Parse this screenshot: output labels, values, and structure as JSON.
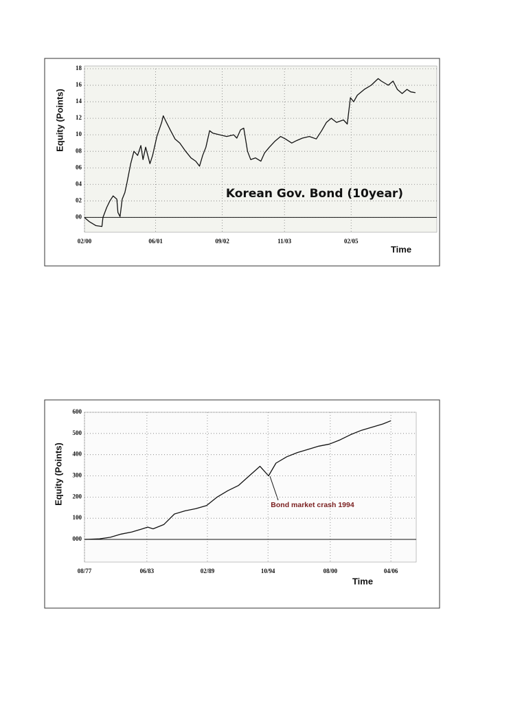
{
  "chart_data": [
    {
      "type": "line",
      "y_label": "Equity (Points)",
      "x_label": "Time",
      "annotation": "Korean Gov. Bond (10year)",
      "x": [
        2000.08,
        2000.17,
        2000.3,
        2000.41,
        2000.43,
        2000.5,
        2000.56,
        2000.62,
        2000.69,
        2000.71,
        2000.75,
        2000.79,
        2000.84,
        2000.88,
        2000.95,
        2001.01,
        2001.08,
        2001.14,
        2001.18,
        2001.23,
        2001.31,
        2001.36,
        2001.44,
        2001.53,
        2001.56,
        2001.62,
        2001.69,
        2001.78,
        2001.87,
        2001.98,
        2002.08,
        2002.17,
        2002.24,
        2002.3,
        2002.36,
        2002.43,
        2002.49,
        2002.62,
        2002.75,
        2002.88,
        2002.94,
        2003.01,
        2003.07,
        2003.14,
        2003.2,
        2003.29,
        2003.39,
        2003.46,
        2003.55,
        2003.65,
        2003.76,
        2003.85,
        2003.97,
        2004.06,
        2004.17,
        2004.3,
        2004.43,
        2004.53,
        2004.62,
        2004.71,
        2004.81,
        2004.94,
        2005.01,
        2005.07,
        2005.13,
        2005.2,
        2005.33,
        2005.46,
        2005.59,
        2005.65,
        2005.78,
        2005.87,
        2005.95,
        2006.04,
        2006.13,
        2006.2,
        2006.29
      ],
      "series": [
        {
          "color": "#111111",
          "values": [
            0,
            -0.5,
            -1.0,
            -1.1,
            0,
            1.2,
            2.0,
            2.6,
            2.2,
            0.6,
            0.1,
            2.2,
            3.0,
            4.2,
            6.5,
            8.0,
            7.5,
            8.7,
            7.0,
            8.5,
            6.5,
            7.5,
            9.8,
            11.5,
            12.3,
            11.5,
            10.6,
            9.5,
            9.0,
            8.0,
            7.2,
            6.8,
            6.2,
            7.5,
            8.5,
            10.5,
            10.2,
            10.0,
            9.8,
            10.0,
            9.6,
            10.6,
            10.8,
            8.0,
            7.0,
            7.2,
            6.8,
            7.8,
            8.5,
            9.2,
            9.8,
            9.5,
            9.0,
            9.3,
            9.6,
            9.8,
            9.5,
            10.5,
            11.5,
            12.0,
            11.5,
            11.8,
            11.3,
            14.5,
            14.0,
            14.8,
            15.5,
            16.0,
            16.8,
            16.5,
            16.0,
            16.5,
            15.5,
            15.0,
            15.5,
            15.2,
            15.1
          ]
        }
      ],
      "xlim": [
        2000.083,
        2006.69
      ],
      "xticks": [
        {
          "value": 2000.083,
          "label": "02/00"
        },
        {
          "value": 2001.417,
          "label": "06/01"
        },
        {
          "value": 2002.667,
          "label": "09/02"
        },
        {
          "value": 2003.833,
          "label": "11/03"
        },
        {
          "value": 2005.083,
          "label": "02/05"
        }
      ],
      "ylim": [
        -1.8,
        18
      ],
      "yticks": [
        {
          "value": 0,
          "label": "00"
        },
        {
          "value": 2,
          "label": "02"
        },
        {
          "value": 4,
          "label": "04"
        },
        {
          "value": 6,
          "label": "06"
        },
        {
          "value": 8,
          "label": "08"
        },
        10,
        12,
        14,
        16,
        18
      ],
      "grid": true
    },
    {
      "type": "line",
      "y_label": "Equity (Points)",
      "x_label": "Time",
      "annotation": "Bond market crash 1994",
      "x": [
        1977.6,
        1979,
        1980,
        1981,
        1982,
        1983,
        1983.5,
        1984,
        1985,
        1986,
        1987,
        1988,
        1989,
        1990,
        1991,
        1992,
        1993,
        1994,
        1994.8,
        1995.5,
        1996.5,
        1997.5,
        1998.5,
        1999.5,
        2000.5,
        2001.5,
        2002.5,
        2003.5,
        2004.5,
        2005.5,
        2006.25
      ],
      "series": [
        {
          "color": "#111111",
          "values": [
            0,
            3,
            10,
            25,
            35,
            50,
            58,
            50,
            70,
            120,
            135,
            145,
            160,
            200,
            230,
            255,
            300,
            345,
            300,
            360,
            390,
            410,
            425,
            440,
            450,
            470,
            495,
            515,
            530,
            545,
            560
          ]
        }
      ],
      "xlim": [
        1977.58,
        2008.62
      ],
      "xticks": [
        {
          "value": 1977.58,
          "label": "08/77"
        },
        {
          "value": 1983.42,
          "label": "06/83"
        },
        {
          "value": 1989.08,
          "label": "02/89"
        },
        {
          "value": 1994.75,
          "label": "10/94"
        },
        {
          "value": 2000.58,
          "label": "08/00"
        },
        {
          "value": 2006.25,
          "label": "04/06"
        }
      ],
      "ylim": [
        -107,
        600
      ],
      "yticks": [
        {
          "value": 0,
          "label": "000"
        },
        100,
        200,
        300,
        400,
        500,
        600
      ],
      "grid": true
    }
  ]
}
